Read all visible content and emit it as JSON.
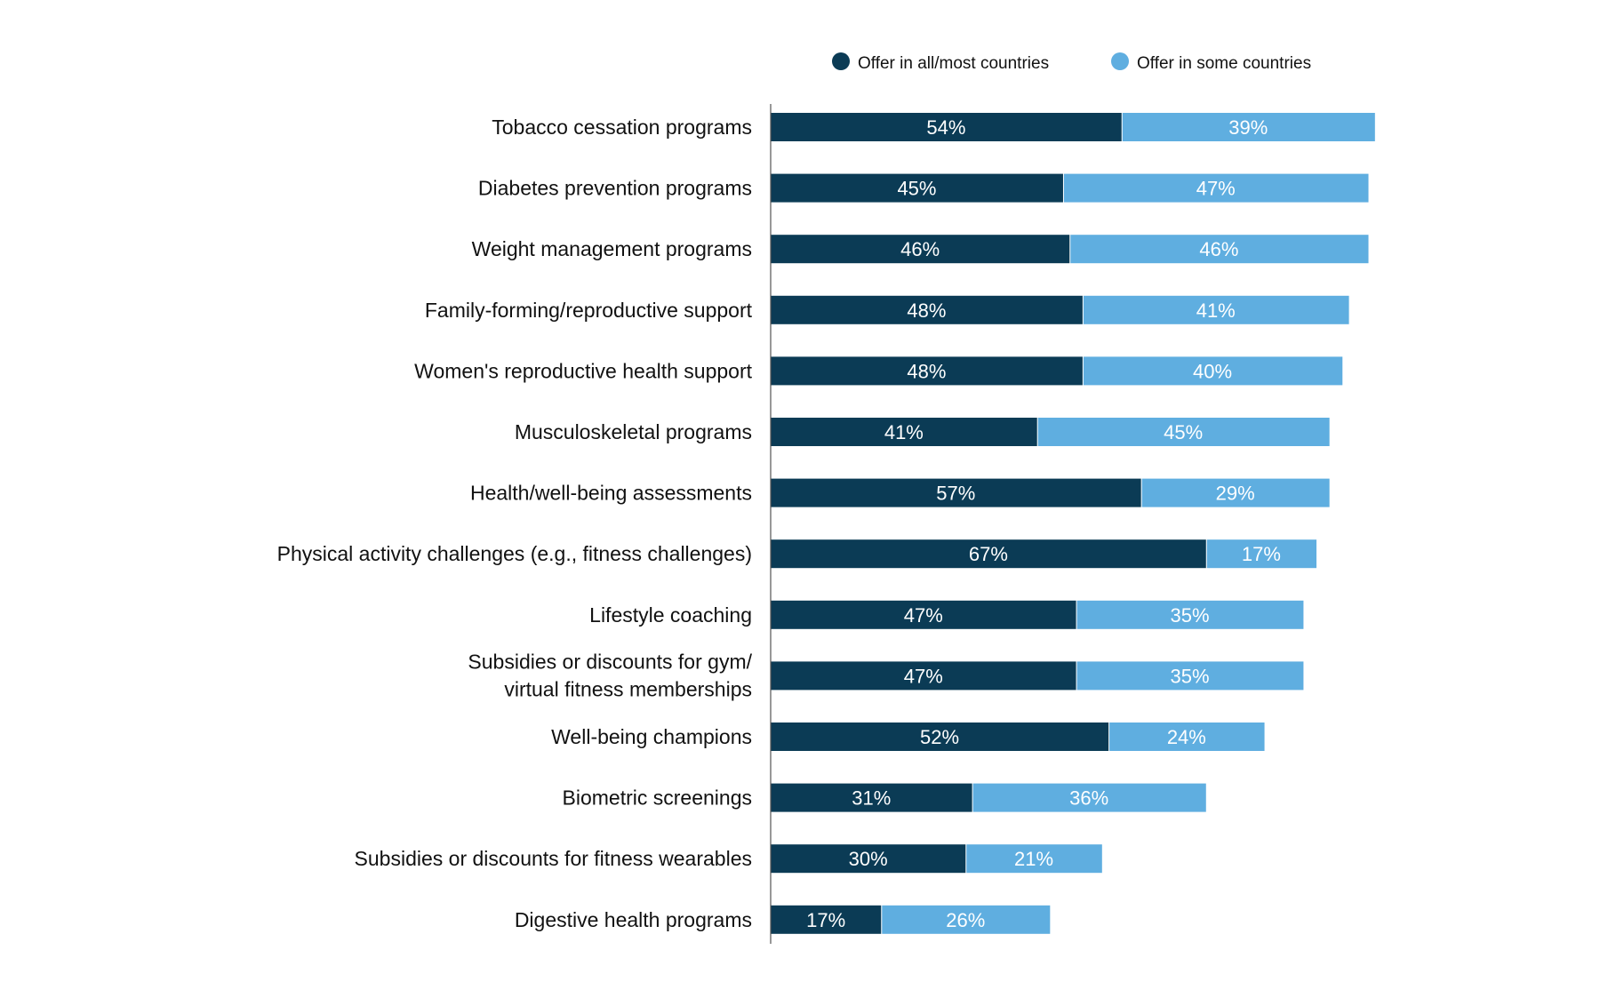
{
  "chart_data": {
    "type": "bar",
    "orientation": "horizontal",
    "stacked": true,
    "title": "",
    "xlabel": "",
    "ylabel": "",
    "xlim": [
      0,
      100
    ],
    "grid": false,
    "legend_position": "top-right",
    "categories": [
      [
        "Tobacco cessation programs"
      ],
      [
        "Diabetes prevention programs"
      ],
      [
        "Weight management programs"
      ],
      [
        "Family-forming/reproductive support"
      ],
      [
        "Women's reproductive health support"
      ],
      [
        "Musculoskeletal programs"
      ],
      [
        "Health/well-being assessments"
      ],
      [
        "Physical activity challenges (e.g., fitness challenges)"
      ],
      [
        "Lifestyle coaching"
      ],
      [
        "Subsidies or discounts for gym/",
        "virtual fitness memberships"
      ],
      [
        "Well-being champions"
      ],
      [
        "Biometric screenings"
      ],
      [
        "Subsidies or discounts for fitness wearables"
      ],
      [
        "Digestive health programs"
      ]
    ],
    "series": [
      {
        "name": "Offer in all/most countries",
        "color": "#0b3b55",
        "values": [
          54,
          45,
          46,
          48,
          48,
          41,
          57,
          67,
          47,
          47,
          52,
          31,
          30,
          17
        ]
      },
      {
        "name": "Offer in some countries",
        "color": "#5faee0",
        "values": [
          39,
          47,
          46,
          41,
          40,
          45,
          29,
          17,
          35,
          35,
          24,
          36,
          21,
          26
        ]
      }
    ]
  }
}
